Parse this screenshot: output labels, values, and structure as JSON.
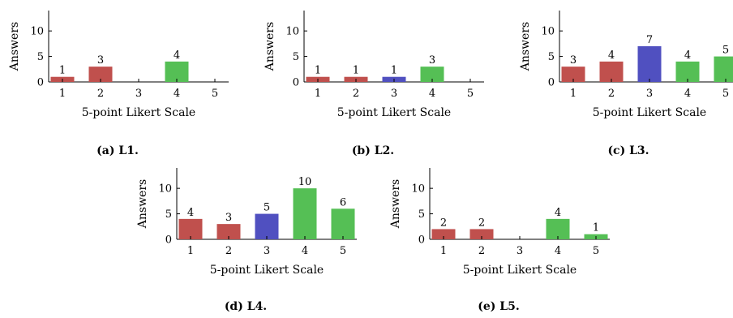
{
  "chart_data": [
    {
      "type": "bar",
      "caption": "(a) L1.",
      "xlabel": "5-point Likert Scale",
      "ylabel": "Answers",
      "categories": [
        "1",
        "2",
        "3",
        "4",
        "5"
      ],
      "values": [
        1,
        3,
        0,
        4,
        0
      ],
      "data_labels": [
        "1",
        "3",
        "",
        "4",
        ""
      ],
      "yticks": [
        "0",
        "5",
        "10"
      ],
      "ylim": [
        0,
        14
      ]
    },
    {
      "type": "bar",
      "caption": "(b) L2.",
      "xlabel": "5-point Likert Scale",
      "ylabel": "Answers",
      "categories": [
        "1",
        "2",
        "3",
        "4",
        "5"
      ],
      "values": [
        1,
        1,
        1,
        3,
        0
      ],
      "data_labels": [
        "1",
        "1",
        "1",
        "3",
        ""
      ],
      "yticks": [
        "0",
        "5",
        "10"
      ],
      "ylim": [
        0,
        14
      ]
    },
    {
      "type": "bar",
      "caption": "(c) L3.",
      "xlabel": "5-point Likert Scale",
      "ylabel": "Answers",
      "categories": [
        "1",
        "2",
        "3",
        "4",
        "5"
      ],
      "values": [
        3,
        4,
        7,
        4,
        5
      ],
      "data_labels": [
        "3",
        "4",
        "7",
        "4",
        "5"
      ],
      "yticks": [
        "0",
        "5",
        "10"
      ],
      "ylim": [
        0,
        14
      ]
    },
    {
      "type": "bar",
      "caption": "(d) L4.",
      "xlabel": "5-point Likert Scale",
      "ylabel": "Answers",
      "categories": [
        "1",
        "2",
        "3",
        "4",
        "5"
      ],
      "values": [
        4,
        3,
        5,
        10,
        6
      ],
      "data_labels": [
        "4",
        "3",
        "5",
        "10",
        "6"
      ],
      "yticks": [
        "0",
        "5",
        "10"
      ],
      "ylim": [
        0,
        14
      ]
    },
    {
      "type": "bar",
      "caption": "(e) L5.",
      "xlabel": "5-point Likert Scale",
      "ylabel": "Answers",
      "categories": [
        "1",
        "2",
        "3",
        "4",
        "5"
      ],
      "values": [
        2,
        2,
        0,
        4,
        1
      ],
      "data_labels": [
        "2",
        "2",
        "",
        "4",
        "1"
      ],
      "yticks": [
        "0",
        "5",
        "10"
      ],
      "ylim": [
        0,
        14
      ]
    }
  ],
  "colors": {
    "negative": "#c0504d",
    "neutral": "#5050c0",
    "positive": "#55bf55",
    "axis": "#000000"
  }
}
